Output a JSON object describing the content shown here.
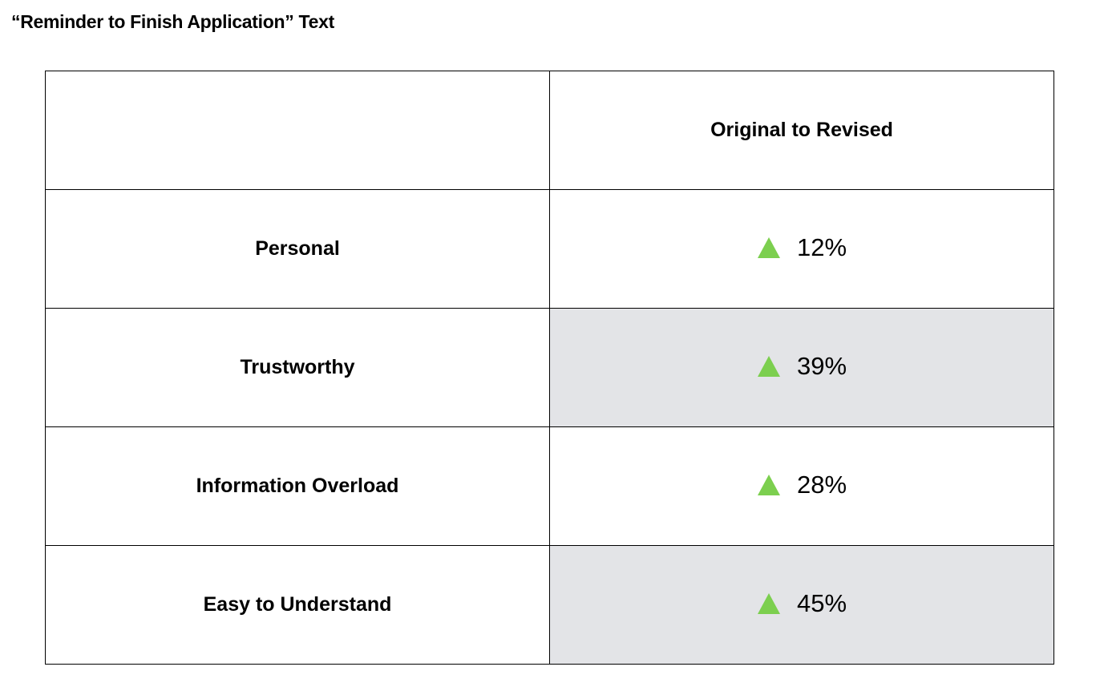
{
  "header": {
    "title": "“Reminder to Finish Application” Text"
  },
  "table": {
    "column_header": "Original to Revised",
    "rows": [
      [
        "Personal",
        "12%"
      ],
      [
        "Trustworthy",
        "39%"
      ],
      [
        "Information Overload",
        "28%"
      ],
      [
        "Easy to Understand",
        "45%"
      ]
    ]
  }
}
